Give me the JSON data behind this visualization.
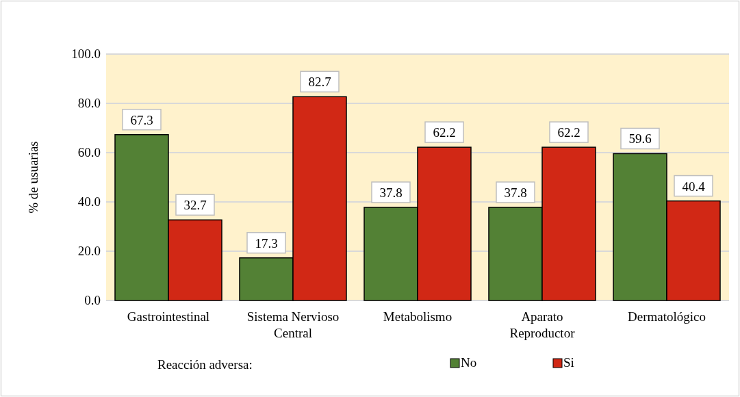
{
  "chart_data": {
    "type": "bar",
    "ylabel": "% de usuarias",
    "legend_title": "Reacción adversa:",
    "categories": [
      "Gastrointestinal",
      "Sistema Nervioso Central",
      "Metabolismo",
      "Aparato Reproductor",
      "Dermatológico"
    ],
    "series": [
      {
        "name": "No",
        "color": "#538135",
        "values": [
          67.3,
          17.3,
          37.8,
          37.8,
          59.6
        ]
      },
      {
        "name": "Si",
        "color": "#d12815",
        "values": [
          32.7,
          82.7,
          62.2,
          62.2,
          40.4
        ]
      }
    ],
    "ylim": [
      0,
      100
    ],
    "yticks": [
      {
        "value": 0,
        "label": "0.0"
      },
      {
        "value": 20,
        "label": "20.0"
      },
      {
        "value": 40,
        "label": "40.0"
      },
      {
        "value": 60,
        "label": "60.0"
      },
      {
        "value": 80,
        "label": "80.0"
      },
      {
        "value": 100,
        "label": "100.0"
      }
    ],
    "grid": "y",
    "legend": "bottom",
    "data_labels": true
  }
}
